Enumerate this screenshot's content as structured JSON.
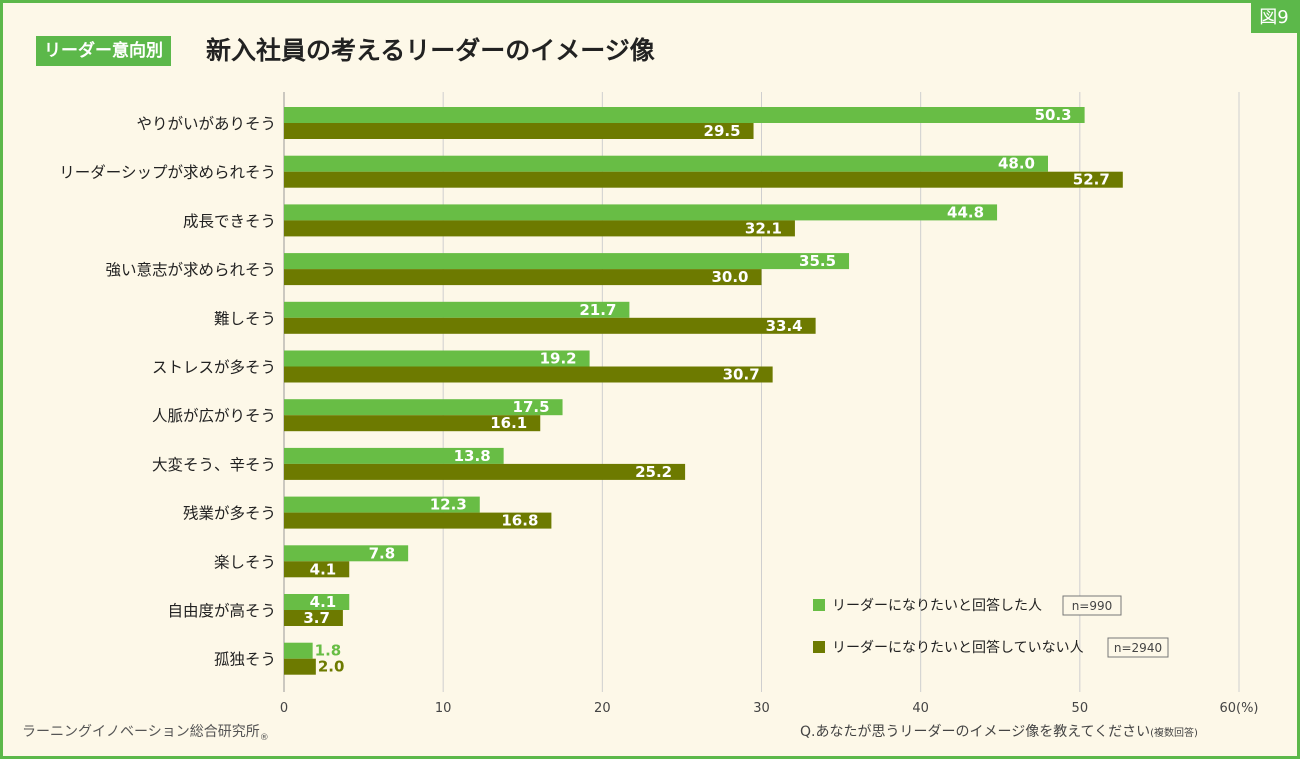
{
  "header": {
    "category": "リーダー意向別",
    "title": "新入社員の考えるリーダーのイメージ像",
    "figure_label": "図9"
  },
  "footer": {
    "source": "ラーニングイノベーション総合研究所",
    "source_mark": "®",
    "question": "Q.あなたが思うリーダーのイメージ像を教えてください",
    "question_note": "(複数回答)"
  },
  "colors": {
    "series1": "#68bd45",
    "series2": "#6d7a00",
    "frame": "#5cb84a",
    "background": "#fdf8e8"
  },
  "chart_data": {
    "type": "bar",
    "orientation": "horizontal",
    "categories": [
      "やりがいがありそう",
      "リーダーシップが求められそう",
      "成長できそう",
      "強い意志が求められそう",
      "難しそう",
      "ストレスが多そう",
      "人脈が広がりそう",
      "大変そう、辛そう",
      "残業が多そう",
      "楽しそう",
      "自由度が高そう",
      "孤独そう"
    ],
    "series": [
      {
        "name": "リーダーになりたいと回答した人",
        "n": "n=990",
        "values": [
          50.3,
          48.0,
          44.8,
          35.5,
          21.7,
          19.2,
          17.5,
          13.8,
          12.3,
          7.8,
          4.1,
          1.8
        ]
      },
      {
        "name": "リーダーになりたいと回答していない人",
        "n": "n=2940",
        "values": [
          29.5,
          52.7,
          32.1,
          30.0,
          33.4,
          30.7,
          16.1,
          25.2,
          16.8,
          4.1,
          3.7,
          2.0
        ]
      }
    ],
    "xlim": [
      0,
      60
    ],
    "ticks": [
      "0",
      "10",
      "20",
      "30",
      "40",
      "50",
      "60(%)"
    ],
    "grid": true,
    "legend": "bottom-right"
  }
}
